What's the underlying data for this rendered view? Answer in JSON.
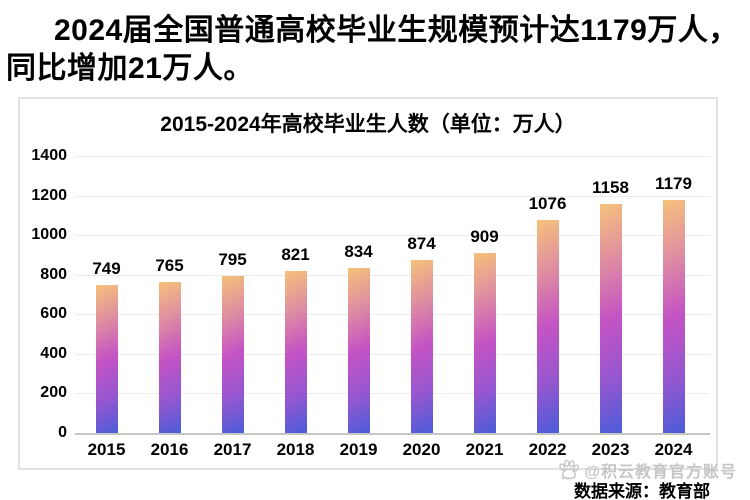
{
  "headline": "2024届全国普通高校毕业生规模预计达1179万人，同比增加21万人。",
  "chart": {
    "title": "2015-2024年高校毕业生人数（单位：万人）",
    "source": "数据来源：教育部",
    "watermark": "@积云教育官方账号",
    "watermark_icon": "baidu-paw-icon",
    "watermark_icon_text": "du",
    "colors": {
      "bar_gradient_top": "#f6c17a",
      "bar_gradient_mid": "#c553c4",
      "bar_gradient_bottom": "#4b5cd8",
      "grid": "#ececec",
      "axis": "#c6c6c6",
      "card_border": "#e2e2e2",
      "watermark": "#c6c6c6",
      "text": "#000000"
    }
  },
  "chart_data": {
    "type": "bar",
    "title": "2015-2024年高校毕业生人数（单位：万人）",
    "unit": "万人",
    "categories": [
      "2015",
      "2016",
      "2017",
      "2018",
      "2019",
      "2020",
      "2021",
      "2022",
      "2023",
      "2024"
    ],
    "values": [
      749,
      765,
      795,
      821,
      834,
      874,
      909,
      1076,
      1158,
      1179
    ],
    "yticks": [
      0,
      200,
      400,
      600,
      800,
      1000,
      1200,
      1400
    ],
    "ylim": [
      0,
      1400
    ],
    "grid": true,
    "legend": "none",
    "value_labels_shown": true,
    "xlabel": "",
    "ylabel": ""
  }
}
